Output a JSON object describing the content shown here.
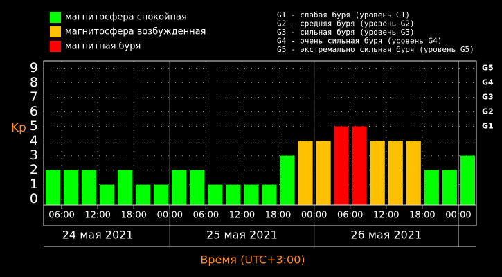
{
  "chart_data": {
    "type": "bar",
    "y_label": "Kp",
    "x_label": "Время (UTC+3:00)",
    "legend": [
      {
        "label": "магнитосфера спокойная",
        "color": "#00ff00"
      },
      {
        "label": "магнитосфера возбужденная",
        "color": "#ffc000"
      },
      {
        "label": "магнитная буря",
        "color": "#ff0000"
      }
    ],
    "g_legend": [
      "G1 - слабая буря (уровень G1)",
      "G2 - средняя буря (уровень G2)",
      "G3 - сильная буря (уровень G3)",
      "G4 - очень сильная буря (уровень G4)",
      "G5 - экстремально сильная буря (уровень G5)"
    ],
    "x": [
      3,
      6,
      9,
      12,
      15,
      18,
      21,
      24,
      27,
      30,
      33,
      36,
      39,
      42,
      45,
      48,
      51,
      54,
      57,
      60,
      63,
      66,
      69,
      72
    ],
    "values": [
      2,
      2,
      2,
      1,
      2,
      1,
      1,
      2,
      2,
      1,
      1,
      1,
      1,
      3,
      4,
      4,
      5,
      5,
      4,
      4,
      4,
      2,
      2,
      3
    ],
    "colors": [
      "#00ff00",
      "#00ff00",
      "#00ff00",
      "#00ff00",
      "#00ff00",
      "#00ff00",
      "#00ff00",
      "#00ff00",
      "#00ff00",
      "#00ff00",
      "#00ff00",
      "#00ff00",
      "#00ff00",
      "#00ff00",
      "#ffc000",
      "#ffc000",
      "#ff0000",
      "#ff0000",
      "#ffc000",
      "#ffc000",
      "#ffc000",
      "#00ff00",
      "#00ff00",
      "#00ff00"
    ],
    "xlim": [
      3,
      75
    ],
    "xticks": [
      {
        "value": 6,
        "label": "06:00"
      },
      {
        "value": 12,
        "label": "12:00"
      },
      {
        "value": 18,
        "label": "18:00"
      },
      {
        "value": 24,
        "label": "00:00"
      },
      {
        "value": 30,
        "label": "06:00"
      },
      {
        "value": 36,
        "label": "12:00"
      },
      {
        "value": 42,
        "label": "18:00"
      },
      {
        "value": 48,
        "label": "00:00"
      },
      {
        "value": 54,
        "label": "06:00"
      },
      {
        "value": 60,
        "label": "12:00"
      },
      {
        "value": 66,
        "label": "18:00"
      },
      {
        "value": 72,
        "label": "00:00"
      }
    ],
    "days": [
      "24 мая 2021",
      "25 мая 2021",
      "26 мая 2021"
    ],
    "ylim": [
      -0.4,
      9.5
    ],
    "yticks": [
      0,
      1,
      2,
      3,
      4,
      5,
      6,
      7,
      8,
      9
    ],
    "y2ticks": [
      {
        "value": 5,
        "label": "G1"
      },
      {
        "value": 6,
        "label": "G2"
      },
      {
        "value": 7,
        "label": "G3"
      },
      {
        "value": 8,
        "label": "G4"
      },
      {
        "value": 9,
        "label": "G5"
      }
    ],
    "grid": true
  }
}
